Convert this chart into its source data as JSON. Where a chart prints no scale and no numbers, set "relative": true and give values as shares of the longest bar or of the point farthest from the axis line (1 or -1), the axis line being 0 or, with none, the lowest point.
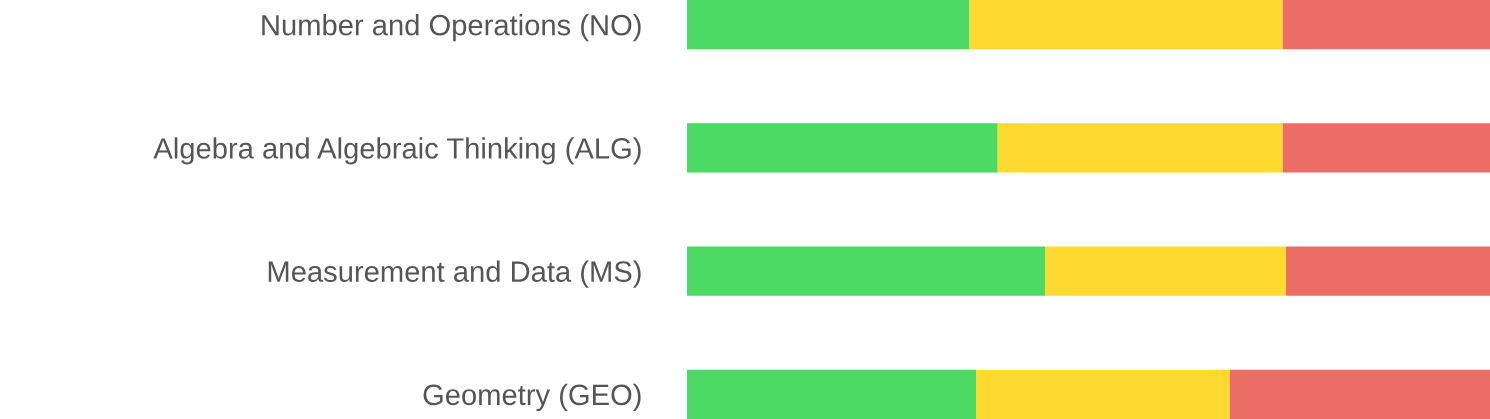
{
  "chart_data": {
    "type": "bar",
    "orientation": "horizontal",
    "stacked": true,
    "relative": true,
    "categories": [
      "Number and Operations (NO)",
      "Algebra and Algebraic Thinking (ALG)",
      "Measurement and Data (MS)",
      "Geometry (GEO)"
    ],
    "series": [
      {
        "color": "#4cd964",
        "values": [
          0.352,
          0.387,
          0.446,
          0.36
        ]
      },
      {
        "color": "#fed930",
        "values": [
          0.39,
          0.355,
          0.3,
          0.316
        ]
      },
      {
        "color": "#ec6d66",
        "values": [
          0.258,
          0.258,
          0.254,
          0.324
        ]
      }
    ],
    "grid": false,
    "legend": false
  }
}
